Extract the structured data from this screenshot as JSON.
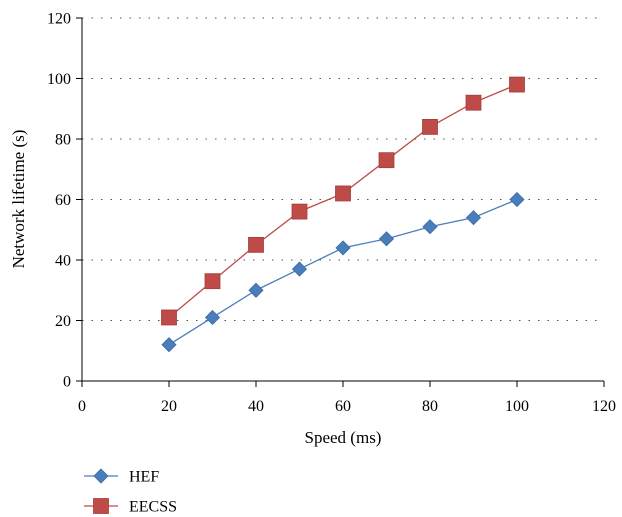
{
  "chart_data": {
    "type": "line",
    "xlabel": "Speed (ms)",
    "ylabel": "Network lifetime (s)",
    "xlim": [
      0,
      120
    ],
    "ylim": [
      0,
      120
    ],
    "x_ticks": [
      0,
      20,
      40,
      60,
      80,
      100,
      120
    ],
    "y_ticks": [
      0,
      20,
      40,
      60,
      80,
      100,
      120
    ],
    "grid": "horizontal dotted",
    "legend_position": "bottom-left",
    "x": [
      20,
      30,
      40,
      50,
      60,
      70,
      80,
      90,
      100
    ],
    "series": [
      {
        "name": "HEF",
        "color": "#4a7ebb",
        "marker": "diamond",
        "values": [
          12,
          21,
          30,
          37,
          44,
          47,
          51,
          54,
          60
        ]
      },
      {
        "name": "EECSS",
        "color": "#be4b48",
        "marker": "square",
        "values": [
          21,
          33,
          45,
          56,
          62,
          73,
          84,
          92,
          98
        ]
      }
    ]
  }
}
